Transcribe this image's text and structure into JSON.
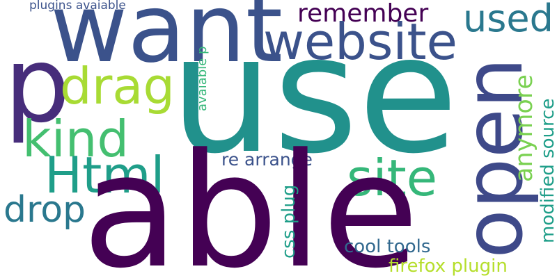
{
  "words": [
    {
      "text": "plugins avaiable",
      "color": "#3b528b"
    },
    {
      "text": "want",
      "color": "#3b528b"
    },
    {
      "text": "remember",
      "color": "#440154"
    },
    {
      "text": "used",
      "color": "#2a788e"
    },
    {
      "text": "website",
      "color": "#3b528b"
    },
    {
      "text": "avaiable p",
      "color": "#35b779"
    },
    {
      "text": "p",
      "color": "#472d7b"
    },
    {
      "text": "drag",
      "color": "#a8db34"
    },
    {
      "text": "use",
      "color": "#21918c"
    },
    {
      "text": "open",
      "color": "#3e4989"
    },
    {
      "text": "anymore",
      "color": "#7ad151"
    },
    {
      "text": "kind",
      "color": "#44bf70"
    },
    {
      "text": "modified source",
      "color": "#1f9e89"
    },
    {
      "text": "Html",
      "color": "#1f9e89"
    },
    {
      "text": "re arrange",
      "color": "#3b528b"
    },
    {
      "text": "site",
      "color": "#35b779"
    },
    {
      "text": "drop",
      "color": "#2a788e"
    },
    {
      "text": "able",
      "color": "#440154"
    },
    {
      "text": "css plug",
      "color": "#1f9e89"
    },
    {
      "text": "cool tools",
      "color": "#31688e"
    },
    {
      "text": "firefox plugin",
      "color": "#b5de2b"
    }
  ]
}
